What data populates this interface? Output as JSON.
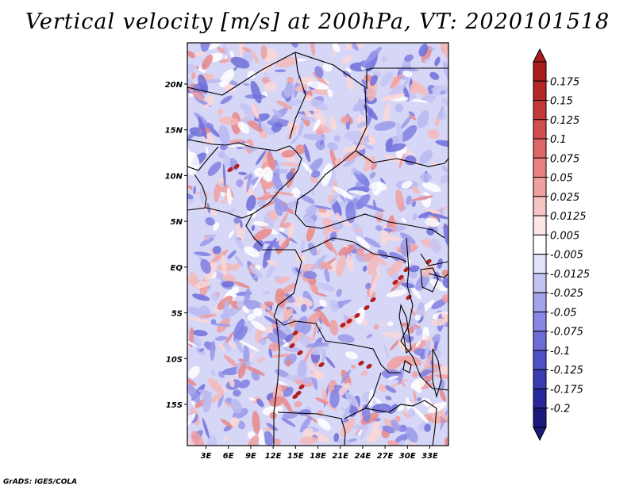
{
  "title": "Vertical velocity [m/s] at 200hPa, VT: 2020101518",
  "footer": "GrADS: IGES/COLA",
  "map": {
    "lat_labels": [
      "20N",
      "15N",
      "10N",
      "5N",
      "EQ",
      "5S",
      "10S",
      "15S"
    ],
    "lat_values": [
      20,
      15,
      10,
      5,
      0,
      -5,
      -10,
      -15
    ],
    "lon_labels": [
      "3E",
      "6E",
      "9E",
      "12E",
      "15E",
      "18E",
      "21E",
      "24E",
      "27E",
      "30E",
      "33E"
    ],
    "lon_values": [
      3,
      6,
      9,
      12,
      15,
      18,
      21,
      24,
      27,
      30,
      33
    ],
    "lat_range": [
      -19.5,
      24.5
    ],
    "lon_range": [
      0.5,
      35.5
    ]
  },
  "colorbar": {
    "labels": [
      "0.175",
      "0.15",
      "0.125",
      "0.1",
      "0.075",
      "0.05",
      "0.025",
      "0.0125",
      "0.005",
      "-0.005",
      "-0.0125",
      "-0.025",
      "-0.05",
      "-0.075",
      "-0.1",
      "-0.125",
      "-0.175",
      "-0.2"
    ],
    "colors": [
      "#a81c1c",
      "#b52727",
      "#c53838",
      "#d24d4d",
      "#de6666",
      "#e88282",
      "#f0a0a0",
      "#f7c4c4",
      "#fde6e6",
      "#ffffff",
      "#e2e2fb",
      "#c3c3f4",
      "#a3a3ec",
      "#8787e4",
      "#6d6dd8",
      "#5252c8",
      "#3a3ab2",
      "#28289c",
      "#1a1a7a"
    ]
  }
}
